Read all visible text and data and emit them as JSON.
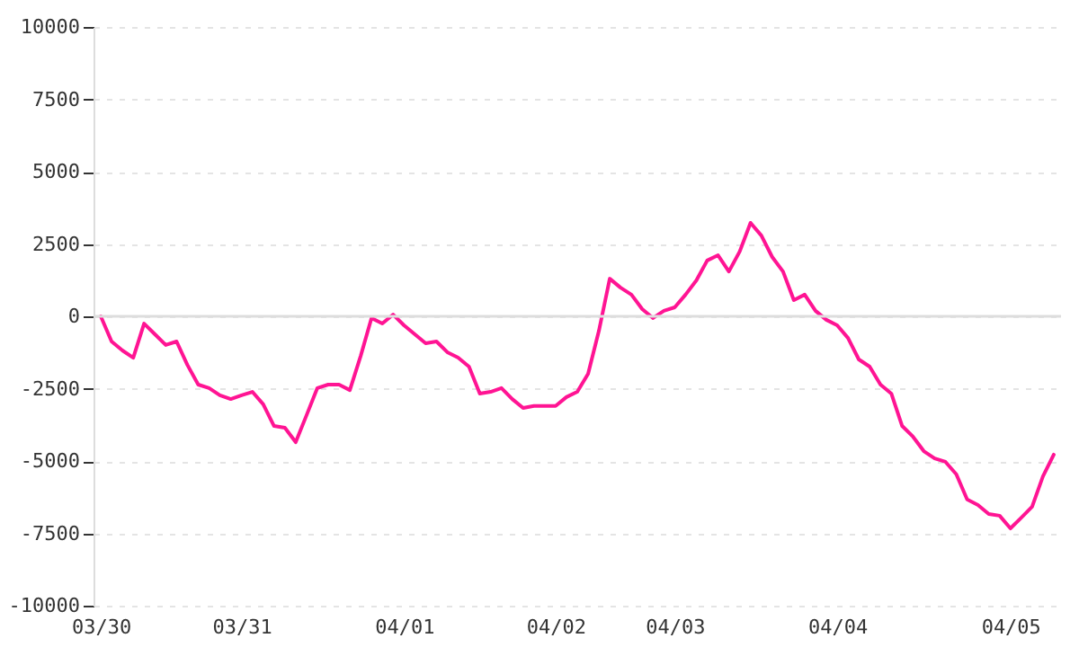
{
  "chart_data": {
    "type": "line",
    "categories": [
      "03/30",
      null,
      null,
      null,
      null,
      null,
      null,
      null,
      null,
      null,
      null,
      null,
      null,
      "03/31",
      null,
      null,
      null,
      null,
      null,
      null,
      null,
      null,
      null,
      null,
      null,
      null,
      null,
      null,
      "04/01",
      null,
      null,
      null,
      null,
      null,
      null,
      null,
      null,
      null,
      null,
      null,
      null,
      null,
      "04/02",
      null,
      null,
      null,
      null,
      null,
      null,
      null,
      null,
      null,
      null,
      "04/03",
      null,
      null,
      null,
      null,
      null,
      null,
      null,
      null,
      null,
      null,
      null,
      null,
      null,
      null,
      "04/04",
      null,
      null,
      null,
      null,
      null,
      null,
      null,
      null,
      null,
      null,
      null,
      null,
      null,
      null,
      null,
      "04/05",
      null,
      null,
      null,
      null
    ],
    "series": [
      {
        "color": "#ff1493",
        "values": [
          0,
          -870,
          -1180,
          -1430,
          -250,
          -620,
          -990,
          -870,
          -1680,
          -2360,
          -2480,
          -2730,
          -2860,
          -2730,
          -2610,
          -3040,
          -3790,
          -3850,
          -4350,
          -3420,
          -2480,
          -2360,
          -2360,
          -2550,
          -1370,
          -60,
          -250,
          60,
          -310,
          -620,
          -930,
          -870,
          -1240,
          -1430,
          -1740,
          -2670,
          -2610,
          -2480,
          -2860,
          -3170,
          -3100,
          -3100,
          -3100,
          -2790,
          -2610,
          -1990,
          -500,
          1300,
          990,
          750,
          250,
          -60,
          190,
          310,
          750,
          1240,
          1930,
          2110,
          1550,
          2240,
          3230,
          2790,
          2050,
          1550,
          560,
          750,
          190,
          -120,
          -310,
          -750,
          -1490,
          -1740,
          -2360,
          -2670,
          -3790,
          -4160,
          -4660,
          -4910,
          -5030,
          -5460,
          -6330,
          -6520,
          -6830,
          -6890,
          -7330,
          -6960,
          -6580,
          -5530,
          -4780
        ]
      }
    ],
    "ylim": [
      -10000,
      10000
    ],
    "yticks": [
      -10000,
      -7500,
      -5000,
      -2500,
      0,
      2500,
      5000,
      7500,
      10000
    ],
    "grid": "y",
    "ref_lines": [
      {
        "axis": "y",
        "value": 0,
        "color": "#dddddd"
      }
    ],
    "marker": "none",
    "line_style": "solid"
  }
}
